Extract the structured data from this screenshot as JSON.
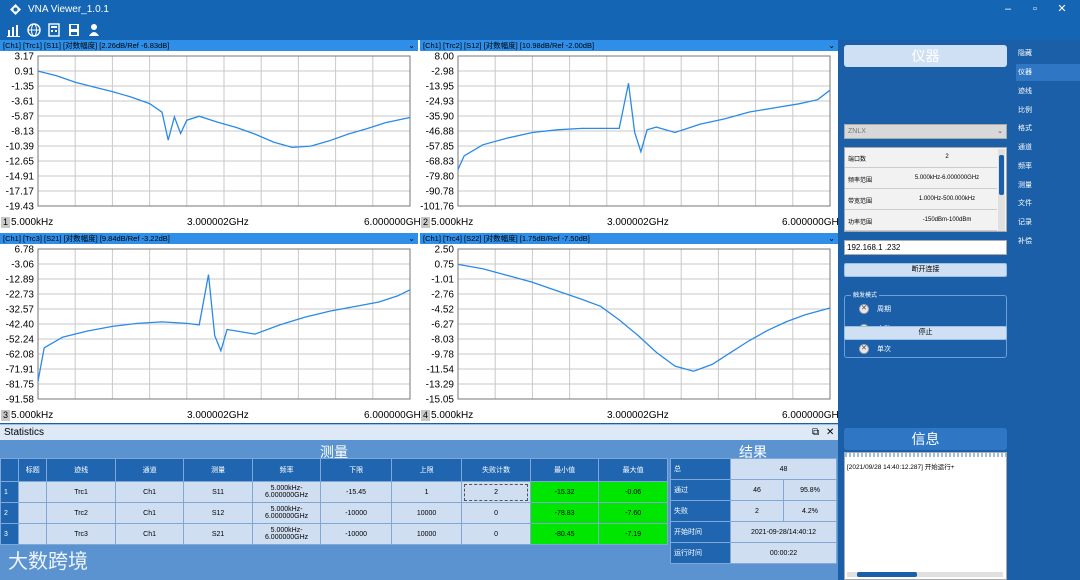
{
  "window": {
    "title": "VNA Viewer_1.0.1"
  },
  "toolbar": {
    "icons": [
      "bar-chart-icon",
      "globe-icon",
      "calculator-icon",
      "save-icon",
      "user-icon"
    ]
  },
  "panels": [
    {
      "header": "[Ch1] [Trc1] [S11] [对数幅度] [2.26dB/Ref -6.83dB]",
      "y_ticks": [
        "3.17",
        "0.91",
        "-1.35",
        "-3.61",
        "-5.87",
        "-8.13",
        "-10.39",
        "-12.65",
        "-14.91",
        "-17.17",
        "-19.43"
      ],
      "x_left": "5.000kHz",
      "x_mid": "3.000002GHz",
      "x_right": "6.000000GHz",
      "num": "1"
    },
    {
      "header": "[Ch1] [Trc2] [S12] [对数幅度] [10.98dB/Ref -2.00dB]",
      "y_ticks": [
        "8.00",
        "-2.98",
        "-13.95",
        "-24.93",
        "-35.90",
        "-46.88",
        "-57.85",
        "-68.83",
        "-79.80",
        "-90.78",
        "-101.76"
      ],
      "x_left": "5.000kHz",
      "x_mid": "3.000002GHz",
      "x_right": "6.000000GHz",
      "num": "2"
    },
    {
      "header": "[Ch1] [Trc3] [S21] [对数幅度] [9.84dB/Ref -3.22dB]",
      "y_ticks": [
        "6.78",
        "-3.06",
        "-12.89",
        "-22.73",
        "-32.57",
        "-42.40",
        "-52.24",
        "-62.08",
        "-71.91",
        "-81.75",
        "-91.58"
      ],
      "x_left": "5.000kHz",
      "x_mid": "3.000002GHz",
      "x_right": "6.000000GHz",
      "num": "3"
    },
    {
      "header": "[Ch1] [Trc4] [S22] [对数幅度] [1.75dB/Ref -7.50dB]",
      "y_ticks": [
        "2.50",
        "0.75",
        "-1.01",
        "-2.76",
        "-4.52",
        "-6.27",
        "-8.03",
        "-9.78",
        "-11.54",
        "-13.29",
        "-15.05"
      ],
      "x_left": "5.000kHz",
      "x_mid": "3.000002GHz",
      "x_right": "6.000000GHz",
      "num": "4"
    }
  ],
  "statistics": {
    "title": "Statistics",
    "measure_title": "测量",
    "result_title": "结果",
    "headers": [
      "",
      "标题",
      "迹线",
      "通道",
      "测量",
      "频率",
      "下限",
      "上限",
      "失败计数",
      "最小值",
      "最大值"
    ],
    "rows": [
      [
        "1",
        "",
        "Trc1",
        "Ch1",
        "S11",
        "5.000kHz-6.000000GHz",
        "-15.45",
        "1",
        "2",
        "-15.32",
        "-0.06"
      ],
      [
        "2",
        "",
        "Trc2",
        "Ch1",
        "S12",
        "5.000kHz-6.000000GHz",
        "-10000",
        "10000",
        "0",
        "-78.83",
        "-7.60"
      ],
      [
        "3",
        "",
        "Trc3",
        "Ch1",
        "S21",
        "5.000kHz-6.000000GHz",
        "-10000",
        "10000",
        "0",
        "-80.45",
        "-7.19"
      ]
    ],
    "results": {
      "total_label": "总",
      "total": "48",
      "pass_label": "通过",
      "pass_count": "46",
      "pass_pct": "95.8%",
      "fail_label": "失败",
      "fail_count": "2",
      "fail_pct": "4.2%",
      "start_label": "开始时间",
      "start": "2021-09-28/14:40:12",
      "run_label": "运行时间",
      "run": "00:00:22"
    }
  },
  "instrument": {
    "title": "仪器",
    "model": "ZNLX",
    "info": [
      {
        "k": "端口数",
        "v": "2"
      },
      {
        "k": "频率范围",
        "v": "5.000kHz-6.000000GHz"
      },
      {
        "k": "带宽范围",
        "v": "1.000Hz-500.000kHz"
      },
      {
        "k": "功率范围",
        "v": "-150dBm-100dBm"
      }
    ],
    "ip": "192.168.1 .232",
    "disconnect": "断开连接",
    "trigger_mode": "触发模式",
    "modes": [
      "周期",
      "自动",
      "单次"
    ],
    "stop": "停止",
    "info_title": "信息",
    "log": "[2021/09/28 14:40:12.287] 开始运行+"
  },
  "nav": [
    "隐藏",
    "仪器",
    "迹线",
    "比例",
    "格式",
    "通道",
    "频率",
    "测量",
    "文件",
    "记录",
    "补偿"
  ],
  "nav_active": 1,
  "watermark": "大数跨境",
  "chart_data": [
    {
      "type": "line",
      "title": "[Ch1] [Trc1] [S11] [对数幅度] [2.26dB/Ref -6.83dB]",
      "ylim": [
        -19.43,
        3.17
      ],
      "xlim_labels": [
        "5.000kHz",
        "3.000002GHz",
        "6.000000GHz"
      ],
      "x": [
        0.0,
        0.3,
        0.6,
        0.9,
        1.2,
        1.5,
        1.8,
        2.0,
        2.1,
        2.2,
        2.3,
        2.4,
        2.6,
        2.9,
        3.2,
        3.5,
        3.8,
        4.1,
        4.4,
        4.7,
        5.0,
        5.3,
        5.6,
        6.0
      ],
      "series": [
        {
          "values": [
            0.9,
            0.2,
            -0.8,
            -1.5,
            -2.2,
            -3.0,
            -4.0,
            -5.3,
            -9.5,
            -6.0,
            -8.5,
            -6.5,
            -5.9,
            -6.8,
            -7.6,
            -8.6,
            -9.8,
            -10.6,
            -10.4,
            -9.6,
            -8.6,
            -7.8,
            -6.9,
            -6.1
          ]
        }
      ]
    },
    {
      "type": "line",
      "title": "[Ch1] [Trc2] [S12] [对数幅度] [10.98dB/Ref -2.00dB]",
      "ylim": [
        -101.76,
        8.0
      ],
      "xlim_labels": [
        "5.000kHz",
        "3.000002GHz",
        "6.000000GHz"
      ],
      "x": [
        0.0,
        0.1,
        0.4,
        0.8,
        1.2,
        1.6,
        2.0,
        2.4,
        2.6,
        2.75,
        2.85,
        2.95,
        3.05,
        3.2,
        3.5,
        3.9,
        4.3,
        4.7,
        5.1,
        5.5,
        5.8,
        6.0
      ],
      "series": [
        {
          "values": [
            -75,
            -65,
            -57,
            -52,
            -48,
            -46,
            -45,
            -45,
            -45,
            -12,
            -48,
            -62,
            -46,
            -44,
            -48,
            -42,
            -38,
            -33,
            -30,
            -27,
            -24,
            -17
          ]
        }
      ]
    },
    {
      "type": "line",
      "title": "[Ch1] [Trc3] [S21] [对数幅度] [9.84dB/Ref -3.22dB]",
      "ylim": [
        -91.58,
        6.78
      ],
      "xlim_labels": [
        "5.000kHz",
        "3.000002GHz",
        "6.000000GHz"
      ],
      "x": [
        0.0,
        0.1,
        0.4,
        0.8,
        1.2,
        1.6,
        2.0,
        2.4,
        2.6,
        2.75,
        2.85,
        2.95,
        3.05,
        3.2,
        3.5,
        3.9,
        4.3,
        4.7,
        5.1,
        5.5,
        5.8,
        6.0
      ],
      "series": [
        {
          "values": [
            -80,
            -58,
            -51,
            -47,
            -44,
            -42,
            -41,
            -42,
            -43,
            -10,
            -50,
            -60,
            -46,
            -47,
            -49,
            -43,
            -38,
            -34,
            -31,
            -28,
            -24,
            -20
          ]
        }
      ]
    },
    {
      "type": "line",
      "title": "[Ch1] [Trc4] [S22] [对数幅度] [1.75dB/Ref -7.50dB]",
      "ylim": [
        -15.05,
        2.5
      ],
      "xlim_labels": [
        "5.000kHz",
        "3.000002GHz",
        "6.000000GHz"
      ],
      "x": [
        0.0,
        0.4,
        0.8,
        1.2,
        1.6,
        2.0,
        2.3,
        2.6,
        2.9,
        3.2,
        3.5,
        3.8,
        4.1,
        4.4,
        4.7,
        5.0,
        5.3,
        5.6,
        6.0
      ],
      "series": [
        {
          "values": [
            0.7,
            0.2,
            -0.6,
            -1.4,
            -2.4,
            -3.4,
            -4.2,
            -5.8,
            -7.6,
            -9.6,
            -11.2,
            -11.8,
            -11.0,
            -9.6,
            -8.2,
            -7.0,
            -6.0,
            -5.2,
            -4.4
          ]
        }
      ]
    }
  ],
  "colors": {
    "trace": "#2a8ae6",
    "grid": "#c9c9c9",
    "accent": "#1565b5",
    "pass": "#00e600"
  }
}
